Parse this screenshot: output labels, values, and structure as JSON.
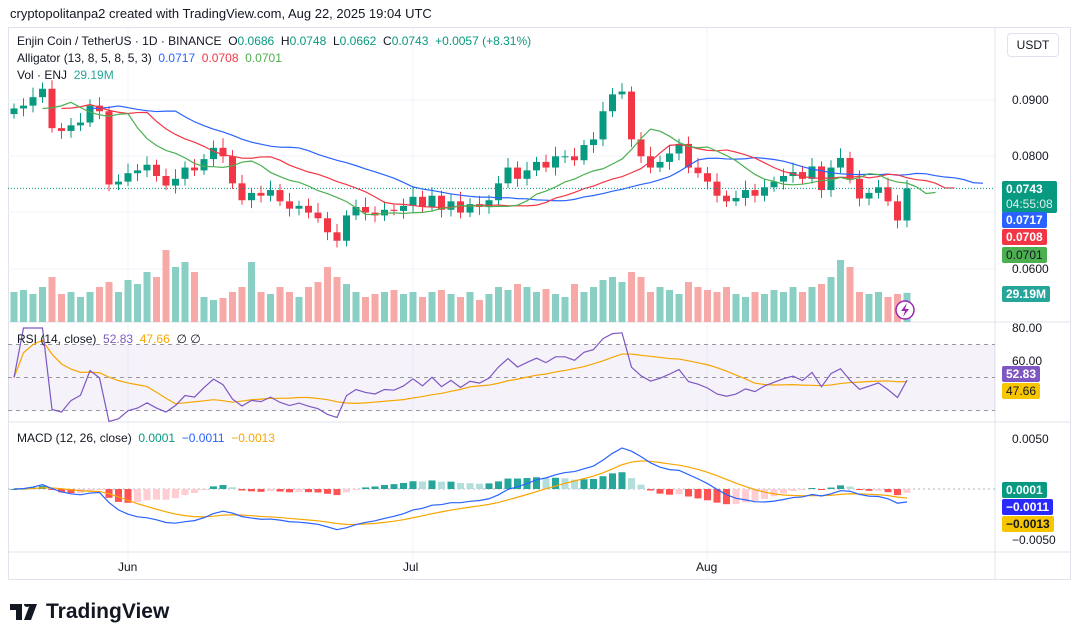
{
  "header": {
    "credit": "cryptopolitanpa2 created with TradingView.com, Aug 22, 2025 19:04 UTC"
  },
  "symbol": {
    "title": "Enjin Coin / TetherUS · 1D · BINANCE",
    "o_label": "O",
    "o": "0.0686",
    "h_label": "H",
    "h": "0.0748",
    "l_label": "L",
    "l": "0.0662",
    "c_label": "C",
    "c": "0.0743",
    "change": "+0.0057 (+8.31%)"
  },
  "alligator": {
    "label": "Alligator (13, 8, 5, 8, 5, 3)",
    "jaw": "0.0717",
    "teeth": "0.0708",
    "lips": "0.0701"
  },
  "volume": {
    "label": "Vol · ENJ",
    "value": "29.19M"
  },
  "rsi": {
    "label": "RSI (14, close)",
    "value": "52.83",
    "ma": "47.66",
    "extra1": "∅",
    "extra2": "∅",
    "ticks": [
      "80.00",
      "60.00"
    ]
  },
  "macd": {
    "label": "MACD (12, 26, close)",
    "hist": "0.0001",
    "macd": "−0.0011",
    "signal": "−0.0013",
    "ticks": [
      "0.0050",
      "−0.0050"
    ]
  },
  "price_axis": {
    "currency": "USDT",
    "ticks": [
      "0.0900",
      "0.0800",
      "0.0600"
    ],
    "last_price": "0.0743",
    "countdown": "04:55:08"
  },
  "time_axis": [
    "Jun",
    "Jul",
    "Aug"
  ],
  "colors": {
    "up": "#089981",
    "down": "#f23645",
    "jaw": "#2962ff",
    "teeth": "#f23645",
    "lips": "#4caf50",
    "rsi": "#7e57c2",
    "signal": "#f7a600"
  },
  "brand": "TradingView",
  "chart_data": {
    "type": "candlestick",
    "start": "2025-05-20",
    "end": "2025-08-22",
    "closes": [
      0.0885,
      0.089,
      0.0905,
      0.092,
      0.085,
      0.0845,
      0.0855,
      0.086,
      0.089,
      0.088,
      0.075,
      0.0755,
      0.077,
      0.0775,
      0.0785,
      0.0765,
      0.0748,
      0.076,
      0.078,
      0.0775,
      0.0795,
      0.0815,
      0.08,
      0.0752,
      0.0722,
      0.0735,
      0.073,
      0.074,
      0.072,
      0.0707,
      0.0712,
      0.07,
      0.069,
      0.0665,
      0.065,
      0.0695,
      0.071,
      0.07,
      0.0695,
      0.0705,
      0.0703,
      0.0712,
      0.0728,
      0.071,
      0.073,
      0.0705,
      0.072,
      0.07,
      0.0715,
      0.071,
      0.0722,
      0.0752,
      0.078,
      0.076,
      0.0775,
      0.079,
      0.078,
      0.08,
      0.08,
      0.0793,
      0.082,
      0.083,
      0.088,
      0.091,
      0.0915,
      0.083,
      0.08,
      0.078,
      0.079,
      0.0805,
      0.0822,
      0.078,
      0.077,
      0.0755,
      0.073,
      0.072,
      0.0726,
      0.074,
      0.073,
      0.0745,
      0.0755,
      0.0765,
      0.0772,
      0.076,
      0.0782,
      0.074,
      0.078,
      0.0797,
      0.076,
      0.0725,
      0.0735,
      0.0745,
      0.072,
      0.0686,
      0.0743
    ],
    "volumes_m": [
      30,
      32,
      28,
      35,
      45,
      28,
      30,
      25,
      30,
      35,
      40,
      30,
      42,
      38,
      50,
      45,
      72,
      55,
      60,
      50,
      25,
      22,
      24,
      30,
      35,
      60,
      30,
      28,
      35,
      30,
      25,
      35,
      40,
      55,
      45,
      38,
      30,
      25,
      28,
      30,
      32,
      28,
      30,
      25,
      30,
      32,
      28,
      25,
      30,
      22,
      28,
      35,
      32,
      38,
      35,
      30,
      33,
      28,
      25,
      38,
      30,
      35,
      42,
      45,
      40,
      50,
      45,
      30,
      35,
      32,
      28,
      40,
      35,
      32,
      30,
      35,
      28,
      25,
      30,
      28,
      32,
      30,
      35,
      30,
      35,
      38,
      45,
      62,
      55,
      30,
      28,
      30,
      25,
      28,
      29.19
    ],
    "price_ticks": [
      0.09,
      0.08,
      0.06
    ]
  }
}
